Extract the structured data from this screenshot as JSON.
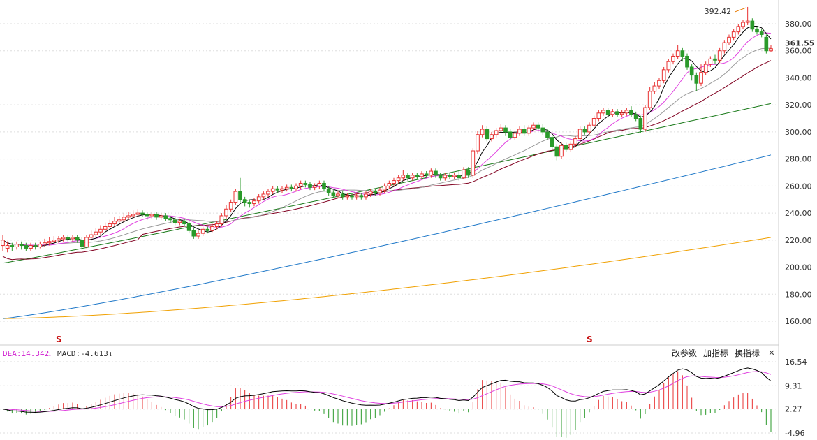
{
  "chart_data": [
    {
      "type": "candlestick",
      "title": "",
      "y_ticks": [
        "380.00",
        "360.00",
        "340.00",
        "320.00",
        "300.00",
        "280.00",
        "260.00",
        "240.00",
        "220.00",
        "200.00",
        "180.00",
        "160.00"
      ],
      "y_tick_values": [
        380,
        360,
        340,
        320,
        300,
        280,
        260,
        240,
        220,
        200,
        180,
        160
      ],
      "ylim": [
        145,
        398
      ],
      "grid": true,
      "last_price_label": "361.55",
      "last_price": 361.55,
      "high_marker_label": "392.42",
      "high_marker_value": 392.42,
      "dividend_markers": [
        {
          "label": "S",
          "index": 12
        },
        {
          "label": "S",
          "index": 126
        }
      ],
      "candles": [
        {
          "o": 216,
          "c": 220,
          "h": 224,
          "l": 212
        },
        {
          "o": 214,
          "c": 216,
          "h": 219,
          "l": 211
        },
        {
          "o": 216,
          "c": 215,
          "h": 218,
          "l": 212
        },
        {
          "o": 215,
          "c": 217,
          "h": 219,
          "l": 213
        },
        {
          "o": 217,
          "c": 216,
          "h": 219,
          "l": 213
        },
        {
          "o": 216,
          "c": 214,
          "h": 218,
          "l": 212
        },
        {
          "o": 214,
          "c": 216,
          "h": 218,
          "l": 212
        },
        {
          "o": 216,
          "c": 215,
          "h": 218,
          "l": 213
        },
        {
          "o": 215,
          "c": 217,
          "h": 219,
          "l": 214
        },
        {
          "o": 217,
          "c": 218,
          "h": 221,
          "l": 215
        },
        {
          "o": 218,
          "c": 219,
          "h": 222,
          "l": 216
        },
        {
          "o": 219,
          "c": 220,
          "h": 223,
          "l": 217
        },
        {
          "o": 220,
          "c": 221,
          "h": 223,
          "l": 218
        },
        {
          "o": 221,
          "c": 222,
          "h": 224,
          "l": 219
        },
        {
          "o": 222,
          "c": 221,
          "h": 224,
          "l": 219
        },
        {
          "o": 221,
          "c": 222,
          "h": 224,
          "l": 219
        },
        {
          "o": 222,
          "c": 220,
          "h": 224,
          "l": 218
        },
        {
          "o": 220,
          "c": 215,
          "h": 222,
          "l": 213
        },
        {
          "o": 215,
          "c": 222,
          "h": 224,
          "l": 214
        },
        {
          "o": 222,
          "c": 224,
          "h": 227,
          "l": 220
        },
        {
          "o": 224,
          "c": 226,
          "h": 229,
          "l": 222
        },
        {
          "o": 226,
          "c": 228,
          "h": 231,
          "l": 224
        },
        {
          "o": 228,
          "c": 230,
          "h": 233,
          "l": 226
        },
        {
          "o": 230,
          "c": 232,
          "h": 235,
          "l": 228
        },
        {
          "o": 232,
          "c": 234,
          "h": 237,
          "l": 230
        },
        {
          "o": 234,
          "c": 235,
          "h": 238,
          "l": 232
        },
        {
          "o": 235,
          "c": 237,
          "h": 240,
          "l": 233
        },
        {
          "o": 237,
          "c": 238,
          "h": 241,
          "l": 235
        },
        {
          "o": 238,
          "c": 239,
          "h": 242,
          "l": 236
        },
        {
          "o": 239,
          "c": 240,
          "h": 243,
          "l": 237
        },
        {
          "o": 240,
          "c": 239,
          "h": 242,
          "l": 237
        },
        {
          "o": 239,
          "c": 238,
          "h": 241,
          "l": 235
        },
        {
          "o": 238,
          "c": 239,
          "h": 241,
          "l": 236
        },
        {
          "o": 239,
          "c": 237,
          "h": 241,
          "l": 235
        },
        {
          "o": 237,
          "c": 238,
          "h": 240,
          "l": 235
        },
        {
          "o": 238,
          "c": 236,
          "h": 240,
          "l": 234
        },
        {
          "o": 236,
          "c": 235,
          "h": 238,
          "l": 233
        },
        {
          "o": 235,
          "c": 233,
          "h": 237,
          "l": 231
        },
        {
          "o": 233,
          "c": 234,
          "h": 236,
          "l": 231
        },
        {
          "o": 234,
          "c": 232,
          "h": 236,
          "l": 230
        },
        {
          "o": 232,
          "c": 227,
          "h": 234,
          "l": 225
        },
        {
          "o": 227,
          "c": 223,
          "h": 229,
          "l": 221
        },
        {
          "o": 223,
          "c": 225,
          "h": 227,
          "l": 221
        },
        {
          "o": 225,
          "c": 228,
          "h": 230,
          "l": 223
        },
        {
          "o": 228,
          "c": 227,
          "h": 230,
          "l": 225
        },
        {
          "o": 227,
          "c": 230,
          "h": 232,
          "l": 226
        },
        {
          "o": 230,
          "c": 232,
          "h": 234,
          "l": 228
        },
        {
          "o": 232,
          "c": 238,
          "h": 240,
          "l": 230
        },
        {
          "o": 238,
          "c": 243,
          "h": 246,
          "l": 236
        },
        {
          "o": 243,
          "c": 248,
          "h": 250,
          "l": 241
        },
        {
          "o": 248,
          "c": 256,
          "h": 258,
          "l": 246
        },
        {
          "o": 256,
          "c": 250,
          "h": 266,
          "l": 248
        },
        {
          "o": 250,
          "c": 248,
          "h": 252,
          "l": 245
        },
        {
          "o": 248,
          "c": 247,
          "h": 250,
          "l": 244
        },
        {
          "o": 247,
          "c": 249,
          "h": 251,
          "l": 245
        },
        {
          "o": 249,
          "c": 252,
          "h": 254,
          "l": 247
        },
        {
          "o": 252,
          "c": 254,
          "h": 256,
          "l": 250
        },
        {
          "o": 254,
          "c": 256,
          "h": 258,
          "l": 252
        },
        {
          "o": 256,
          "c": 258,
          "h": 260,
          "l": 254
        },
        {
          "o": 258,
          "c": 257,
          "h": 260,
          "l": 255
        },
        {
          "o": 257,
          "c": 258,
          "h": 260,
          "l": 255
        },
        {
          "o": 258,
          "c": 259,
          "h": 261,
          "l": 256
        },
        {
          "o": 259,
          "c": 258,
          "h": 261,
          "l": 256
        },
        {
          "o": 258,
          "c": 260,
          "h": 262,
          "l": 256
        },
        {
          "o": 260,
          "c": 262,
          "h": 264,
          "l": 258
        },
        {
          "o": 262,
          "c": 261,
          "h": 264,
          "l": 259
        },
        {
          "o": 261,
          "c": 259,
          "h": 263,
          "l": 257
        },
        {
          "o": 259,
          "c": 260,
          "h": 262,
          "l": 257
        },
        {
          "o": 260,
          "c": 262,
          "h": 264,
          "l": 258
        },
        {
          "o": 262,
          "c": 258,
          "h": 264,
          "l": 256
        },
        {
          "o": 258,
          "c": 255,
          "h": 260,
          "l": 253
        },
        {
          "o": 255,
          "c": 253,
          "h": 257,
          "l": 251
        },
        {
          "o": 253,
          "c": 254,
          "h": 256,
          "l": 251
        },
        {
          "o": 254,
          "c": 252,
          "h": 256,
          "l": 250
        },
        {
          "o": 252,
          "c": 253,
          "h": 255,
          "l": 250
        },
        {
          "o": 253,
          "c": 252,
          "h": 255,
          "l": 250
        },
        {
          "o": 252,
          "c": 253,
          "h": 255,
          "l": 250
        },
        {
          "o": 253,
          "c": 252,
          "h": 255,
          "l": 250
        },
        {
          "o": 252,
          "c": 254,
          "h": 256,
          "l": 250
        },
        {
          "o": 254,
          "c": 256,
          "h": 258,
          "l": 252
        },
        {
          "o": 256,
          "c": 255,
          "h": 258,
          "l": 253
        },
        {
          "o": 255,
          "c": 257,
          "h": 259,
          "l": 253
        },
        {
          "o": 257,
          "c": 260,
          "h": 262,
          "l": 255
        },
        {
          "o": 260,
          "c": 262,
          "h": 264,
          "l": 258
        },
        {
          "o": 262,
          "c": 264,
          "h": 266,
          "l": 260
        },
        {
          "o": 264,
          "c": 266,
          "h": 268,
          "l": 262
        },
        {
          "o": 266,
          "c": 268,
          "h": 272,
          "l": 264
        },
        {
          "o": 268,
          "c": 266,
          "h": 270,
          "l": 264
        },
        {
          "o": 266,
          "c": 268,
          "h": 270,
          "l": 264
        },
        {
          "o": 268,
          "c": 267,
          "h": 270,
          "l": 265
        },
        {
          "o": 267,
          "c": 269,
          "h": 271,
          "l": 265
        },
        {
          "o": 269,
          "c": 268,
          "h": 271,
          "l": 266
        },
        {
          "o": 268,
          "c": 271,
          "h": 273,
          "l": 266
        },
        {
          "o": 271,
          "c": 268,
          "h": 273,
          "l": 266
        },
        {
          "o": 268,
          "c": 266,
          "h": 270,
          "l": 264
        },
        {
          "o": 266,
          "c": 268,
          "h": 270,
          "l": 264
        },
        {
          "o": 268,
          "c": 267,
          "h": 270,
          "l": 265
        },
        {
          "o": 267,
          "c": 268,
          "h": 270,
          "l": 265
        },
        {
          "o": 268,
          "c": 266,
          "h": 271,
          "l": 264
        },
        {
          "o": 266,
          "c": 272,
          "h": 274,
          "l": 265
        },
        {
          "o": 272,
          "c": 268,
          "h": 274,
          "l": 266
        },
        {
          "o": 268,
          "c": 286,
          "h": 288,
          "l": 266
        },
        {
          "o": 286,
          "c": 298,
          "h": 301,
          "l": 284
        },
        {
          "o": 298,
          "c": 302,
          "h": 305,
          "l": 296
        },
        {
          "o": 302,
          "c": 295,
          "h": 304,
          "l": 293
        },
        {
          "o": 295,
          "c": 298,
          "h": 300,
          "l": 293
        },
        {
          "o": 298,
          "c": 301,
          "h": 303,
          "l": 296
        },
        {
          "o": 301,
          "c": 303,
          "h": 306,
          "l": 299
        },
        {
          "o": 303,
          "c": 300,
          "h": 305,
          "l": 297
        },
        {
          "o": 300,
          "c": 296,
          "h": 302,
          "l": 294
        },
        {
          "o": 296,
          "c": 299,
          "h": 301,
          "l": 294
        },
        {
          "o": 299,
          "c": 302,
          "h": 304,
          "l": 297
        },
        {
          "o": 302,
          "c": 299,
          "h": 305,
          "l": 297
        },
        {
          "o": 299,
          "c": 303,
          "h": 305,
          "l": 297
        },
        {
          "o": 303,
          "c": 305,
          "h": 307,
          "l": 301
        },
        {
          "o": 305,
          "c": 303,
          "h": 307,
          "l": 301
        },
        {
          "o": 303,
          "c": 300,
          "h": 306,
          "l": 298
        },
        {
          "o": 300,
          "c": 296,
          "h": 302,
          "l": 294
        },
        {
          "o": 296,
          "c": 289,
          "h": 298,
          "l": 287
        },
        {
          "o": 289,
          "c": 282,
          "h": 291,
          "l": 279
        },
        {
          "o": 282,
          "c": 290,
          "h": 292,
          "l": 280
        },
        {
          "o": 290,
          "c": 287,
          "h": 292,
          "l": 285
        },
        {
          "o": 287,
          "c": 291,
          "h": 293,
          "l": 285
        },
        {
          "o": 291,
          "c": 295,
          "h": 297,
          "l": 289
        },
        {
          "o": 295,
          "c": 302,
          "h": 304,
          "l": 293
        },
        {
          "o": 302,
          "c": 300,
          "h": 304,
          "l": 298
        },
        {
          "o": 300,
          "c": 305,
          "h": 307,
          "l": 298
        },
        {
          "o": 305,
          "c": 310,
          "h": 312,
          "l": 303
        },
        {
          "o": 310,
          "c": 314,
          "h": 316,
          "l": 308
        },
        {
          "o": 314,
          "c": 316,
          "h": 318,
          "l": 312
        },
        {
          "o": 316,
          "c": 313,
          "h": 318,
          "l": 311
        },
        {
          "o": 313,
          "c": 315,
          "h": 317,
          "l": 311
        },
        {
          "o": 315,
          "c": 313,
          "h": 317,
          "l": 311
        },
        {
          "o": 313,
          "c": 314,
          "h": 316,
          "l": 311
        },
        {
          "o": 314,
          "c": 316,
          "h": 318,
          "l": 312
        },
        {
          "o": 316,
          "c": 313,
          "h": 319,
          "l": 311
        },
        {
          "o": 313,
          "c": 310,
          "h": 315,
          "l": 308
        },
        {
          "o": 310,
          "c": 302,
          "h": 312,
          "l": 299
        },
        {
          "o": 302,
          "c": 318,
          "h": 320,
          "l": 300
        },
        {
          "o": 318,
          "c": 330,
          "h": 333,
          "l": 316
        },
        {
          "o": 330,
          "c": 334,
          "h": 337,
          "l": 328
        },
        {
          "o": 334,
          "c": 338,
          "h": 340,
          "l": 332
        },
        {
          "o": 338,
          "c": 346,
          "h": 348,
          "l": 336
        },
        {
          "o": 346,
          "c": 352,
          "h": 354,
          "l": 344
        },
        {
          "o": 352,
          "c": 356,
          "h": 358,
          "l": 350
        },
        {
          "o": 356,
          "c": 360,
          "h": 364,
          "l": 354
        },
        {
          "o": 360,
          "c": 356,
          "h": 362,
          "l": 352
        },
        {
          "o": 356,
          "c": 348,
          "h": 358,
          "l": 346
        },
        {
          "o": 348,
          "c": 342,
          "h": 350,
          "l": 338
        },
        {
          "o": 342,
          "c": 336,
          "h": 344,
          "l": 330
        },
        {
          "o": 336,
          "c": 344,
          "h": 350,
          "l": 334
        },
        {
          "o": 344,
          "c": 350,
          "h": 352,
          "l": 342
        },
        {
          "o": 350,
          "c": 354,
          "h": 356,
          "l": 348
        },
        {
          "o": 354,
          "c": 353,
          "h": 357,
          "l": 350
        },
        {
          "o": 353,
          "c": 360,
          "h": 362,
          "l": 351
        },
        {
          "o": 360,
          "c": 366,
          "h": 368,
          "l": 358
        },
        {
          "o": 366,
          "c": 370,
          "h": 372,
          "l": 364
        },
        {
          "o": 370,
          "c": 374,
          "h": 376,
          "l": 368
        },
        {
          "o": 374,
          "c": 378,
          "h": 380,
          "l": 372
        },
        {
          "o": 378,
          "c": 381,
          "h": 383,
          "l": 376
        },
        {
          "o": 381,
          "c": 382,
          "h": 392.42,
          "l": 379
        },
        {
          "o": 382,
          "c": 376,
          "h": 384,
          "l": 374
        },
        {
          "o": 376,
          "c": 374,
          "h": 378,
          "l": 372
        },
        {
          "o": 374,
          "c": 372,
          "h": 376,
          "l": 370
        },
        {
          "o": 370,
          "c": 360,
          "h": 372,
          "l": 358
        },
        {
          "o": 360,
          "c": 361.55,
          "h": 364,
          "l": 359
        }
      ],
      "ma_colors": {
        "ma5": "#000000",
        "ma10": "#e040e0",
        "ma20": "#999999",
        "ma30": "#800020",
        "ma60": "#1a7a1a",
        "ma120": "#1f78c8",
        "ma250": "#f0a000"
      },
      "ma_approx": {
        "ma60": [
          [
            0,
            203
          ],
          [
            178,
            293
          ],
          [
            178,
            321
          ]
        ],
        "ma120": [
          [
            0,
            162
          ],
          [
            178,
            283
          ]
        ],
        "ma250": [
          [
            0,
            162
          ],
          [
            178,
            222
          ]
        ]
      },
      "up_color": "#e83030",
      "down_color": "#2a9a2a"
    },
    {
      "type": "macd",
      "label_dea": "DEA:14.342",
      "label_macd": "MACD:-4.613",
      "y_ticks": [
        "16.54",
        "9.31",
        "2.27",
        "-4.96"
      ],
      "y_tick_values": [
        16.54,
        9.31,
        2.27,
        -4.96
      ],
      "ylim": [
        -9,
        20
      ],
      "dif_color": "#000000",
      "dea_color": "#e040e0",
      "hist_up_color": "#e83030",
      "hist_down_color": "#2a9a2a"
    }
  ],
  "toolbar": {
    "change_params": "改参数",
    "add_indicator": "加指标",
    "switch_indicator": "换指标",
    "close_symbol": "✕"
  }
}
